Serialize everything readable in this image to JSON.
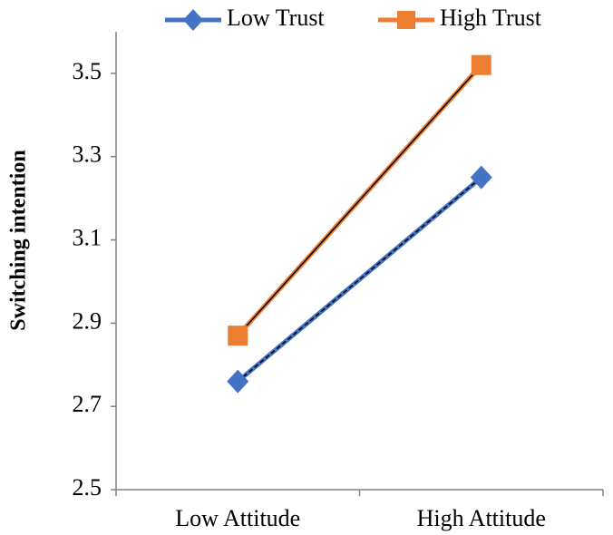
{
  "chart_data": {
    "type": "line",
    "categories": [
      "Low Attitude",
      "High Attitude"
    ],
    "series": [
      {
        "name": "Low Trust",
        "color": "#4472c4",
        "marker": "diamond",
        "values": [
          2.76,
          3.25
        ]
      },
      {
        "name": "High Trust",
        "color": "#ed7d31",
        "marker": "square",
        "values": [
          2.87,
          3.52
        ]
      }
    ],
    "ylabel": "Switching intention",
    "ylim": [
      2.5,
      3.6
    ],
    "yticks": [
      2.5,
      2.7,
      2.9,
      3.1,
      3.3,
      3.5
    ],
    "grid": false,
    "legend": "top"
  }
}
